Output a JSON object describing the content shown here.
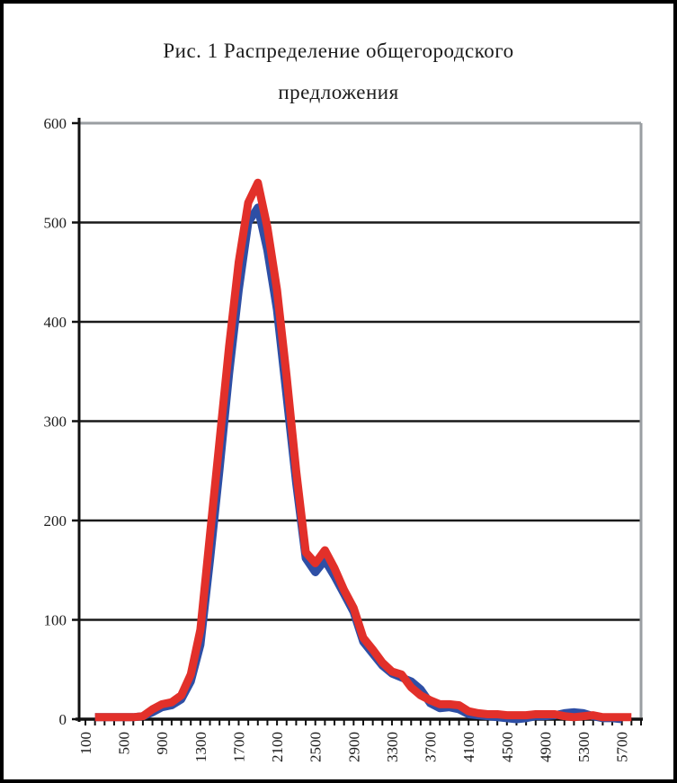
{
  "title": {
    "line1": "Рис. 1 Распределение общегородского",
    "line2": "предложения"
  },
  "chart_data": {
    "type": "line",
    "title": "Рис. 1 Распределение общегородского предложения",
    "xlabel": "",
    "ylabel": "",
    "xlim": [
      100,
      5900
    ],
    "ylim": [
      0,
      600
    ],
    "y_ticks": [
      0,
      100,
      200,
      300,
      400,
      500,
      600
    ],
    "x_tick_step": 100,
    "x_labeled_ticks": [
      "100",
      "500",
      "900",
      "1300",
      "1700",
      "2100",
      "2500",
      "2900",
      "3300",
      "3700",
      "4100",
      "4500",
      "4900",
      "5300",
      "5700"
    ],
    "x_label_rotation_deg": -90,
    "grid": "horizontal black gridlines at 100..500; grey plot-area border top and right",
    "legend": "none",
    "series": [
      {
        "name": "blue",
        "color": "#2E4FA5",
        "line_width": 9,
        "x_start": 200,
        "x_step": 100,
        "values": [
          2,
          2,
          2,
          2,
          2,
          3,
          7,
          12,
          14,
          20,
          38,
          75,
          160,
          252,
          348,
          432,
          500,
          515,
          472,
          412,
          325,
          238,
          162,
          148,
          160,
          144,
          126,
          108,
          78,
          66,
          54,
          46,
          42,
          38,
          30,
          16,
          11,
          12,
          10,
          5,
          4,
          3,
          2,
          1,
          0,
          1,
          3,
          3,
          4,
          6,
          7,
          6,
          3,
          1,
          1,
          0
        ]
      },
      {
        "name": "red",
        "color": "#E2302A",
        "line_width": 9,
        "x_start": 200,
        "x_step": 100,
        "values": [
          2,
          2,
          2,
          2,
          2,
          3,
          10,
          15,
          17,
          24,
          45,
          90,
          185,
          280,
          375,
          460,
          520,
          540,
          495,
          432,
          345,
          250,
          168,
          157,
          170,
          152,
          130,
          112,
          82,
          70,
          57,
          48,
          45,
          32,
          24,
          19,
          15,
          15,
          14,
          8,
          6,
          5,
          5,
          4,
          4,
          4,
          5,
          5,
          5,
          3,
          2,
          3,
          4,
          2,
          2,
          2,
          2
        ]
      }
    ]
  },
  "colors": {
    "axis": "#111111",
    "gridline": "#1a1a1a",
    "plot_border_grey": "#9a9ea2",
    "text": "#1c1c1c",
    "background": "#ffffff",
    "outer_border": "#000000"
  }
}
